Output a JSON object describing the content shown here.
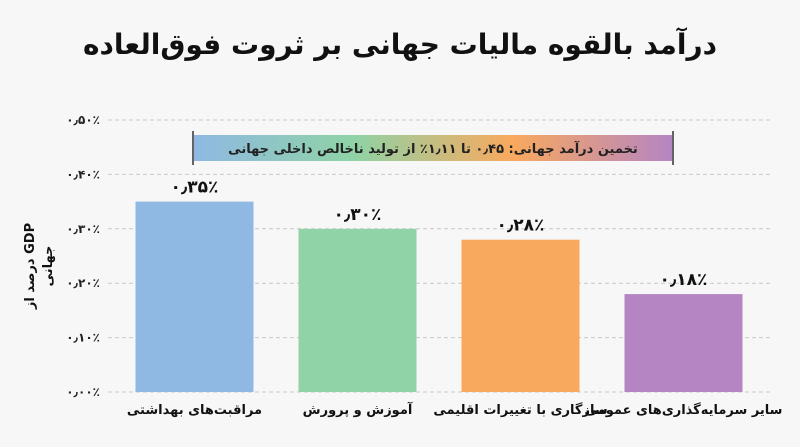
{
  "title": "درآمد بالقوه مالیات جهانی بر ثروت فوق‌العاده",
  "chart_data": {
    "type": "bar",
    "categories": [
      "مراقبت‌های بهداشتی",
      "آموزش و پرورش",
      "سازگاری با تغییرات اقلیمی",
      "سایر سرمایه‌گذاری‌های عمومی"
    ],
    "values": [
      0.35,
      0.3,
      0.28,
      0.18
    ],
    "value_labels": [
      "۰٫۳۵٪",
      "۰٫۳۰٪",
      "۰٫۲۸٪",
      "۰٫۱۸٪"
    ],
    "colors": [
      "#8fb9e3",
      "#8fd3a6",
      "#f9a95e",
      "#b585c3"
    ],
    "ylim": [
      0,
      0.5
    ],
    "yticks": [
      0,
      0.1,
      0.2,
      0.3,
      0.4,
      0.5
    ],
    "ytick_labels": [
      "۰٫۰۰٪",
      "۰٫۱۰٪",
      "۰٫۲۰٪",
      "۰٫۳۰٪",
      "۰٫۴۰٪",
      "۰٫۵۰٪"
    ],
    "ylabel_lines": [
      "درصد از GDP",
      "جهانی"
    ],
    "grid": true,
    "annotation": {
      "text": "تخمین درآمد جهانی: ۰٫۴۵ تا ۱٫۱۱٪ از تولید ناخالص داخلی جهانی",
      "colors": [
        "#8fb9e3",
        "#8fd3a6",
        "#f9a95e",
        "#b585c3"
      ]
    }
  }
}
